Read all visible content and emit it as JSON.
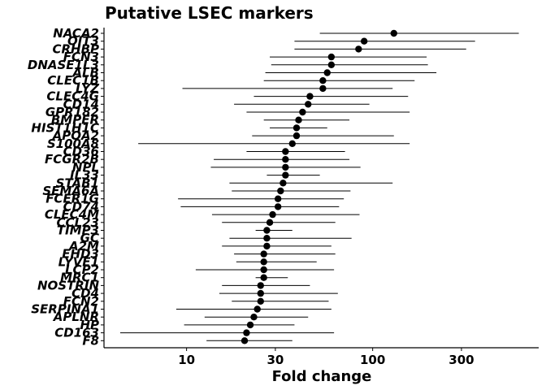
{
  "chart_data": {
    "type": "scatter",
    "title": "Putative LSEC markers",
    "xlabel": "Fold change",
    "ylabel": "",
    "x_scale": "log",
    "xlim": [
      3.6,
      780
    ],
    "x_ticks": [
      10,
      30,
      100,
      300
    ],
    "x_tick_labels": [
      "10",
      "30",
      "100",
      "300"
    ],
    "grid": false,
    "legend": "none",
    "colors": {
      "point": "#000000",
      "errorbar": "#000000",
      "axis": "#000000"
    },
    "series": [
      {
        "categories": [
          "NACA2",
          "OIT3",
          "CRHBP",
          "FCN3",
          "DNASE1L3",
          "ALB",
          "CLEC1B",
          "LYZ",
          "CLEC4G",
          "CD14",
          "GPR182",
          "BMPER",
          "HIST1H1C",
          "APOA2",
          "S100A8",
          "CD36",
          "FCGR2B",
          "NPL",
          "IL33",
          "STAB1",
          "SEMA6A",
          "FCER1G",
          "CD74",
          "CLEC4M",
          "CCL23",
          "TIMP3",
          "GC",
          "A2M",
          "EHD3",
          "LYVE1",
          "LCP2",
          "MRC1",
          "NOSTRIN",
          "CD4",
          "FCN2",
          "SERPINA1",
          "APLNR",
          "HP",
          "CD163",
          "F8"
        ],
        "values": [
          130,
          90,
          84,
          60,
          60,
          57,
          54,
          54,
          46,
          45,
          42,
          40,
          39,
          39,
          37,
          34,
          34,
          34,
          34,
          33,
          32,
          31,
          31,
          29,
          28,
          27,
          27,
          27,
          26,
          26,
          26,
          26,
          25,
          25,
          25,
          24,
          23,
          22,
          21,
          20.5
        ],
        "ci_low": [
          52,
          38,
          38,
          28,
          28.5,
          26.5,
          26,
          9.5,
          23,
          18,
          21,
          26,
          28,
          22.5,
          5.5,
          21,
          14,
          13.5,
          27,
          17,
          17.5,
          9,
          9.3,
          13.7,
          15.5,
          23.5,
          17,
          15.5,
          18,
          18.5,
          11.2,
          23.5,
          15.5,
          15,
          17.5,
          8.8,
          12.5,
          9.7,
          4.4,
          12.8
        ],
        "ci_high": [
          610,
          355,
          318,
          195,
          198,
          220,
          168,
          128,
          155,
          96,
          158,
          75,
          57,
          130,
          158,
          71,
          75,
          86,
          52,
          128,
          76,
          70,
          66,
          85,
          63,
          37,
          77,
          60,
          63,
          50,
          62,
          35,
          46,
          65,
          58,
          60,
          45,
          38,
          62,
          37
        ]
      }
    ]
  }
}
